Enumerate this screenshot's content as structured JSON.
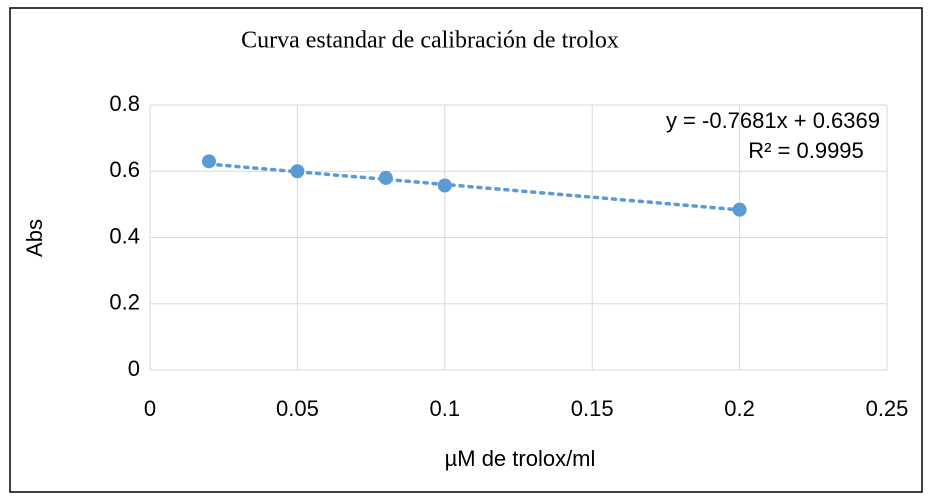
{
  "chart_data": {
    "type": "scatter",
    "title": "Curva estandar de calibración de trolox",
    "xlabel": "µM de trolox/ml",
    "ylabel": "Abs",
    "series": [
      {
        "name": "Abs",
        "color": "#5b9bd5",
        "x": [
          0.02,
          0.05,
          0.08,
          0.1,
          0.2
        ],
        "values": [
          0.63,
          0.6,
          0.58,
          0.557,
          0.484
        ]
      }
    ],
    "trendline": {
      "label": "y = -0.7681x + 0.6369",
      "r2_label": "R² = 0.9995",
      "slope": -0.7681,
      "intercept": 0.6369
    },
    "xlim": [
      0,
      0.25
    ],
    "xticks": [
      0,
      0.05,
      0.1,
      0.15,
      0.2,
      0.25
    ],
    "ylim": [
      0,
      0.8
    ],
    "yticks": [
      0,
      0.2,
      0.4,
      0.6,
      0.8
    ],
    "grid": true
  }
}
